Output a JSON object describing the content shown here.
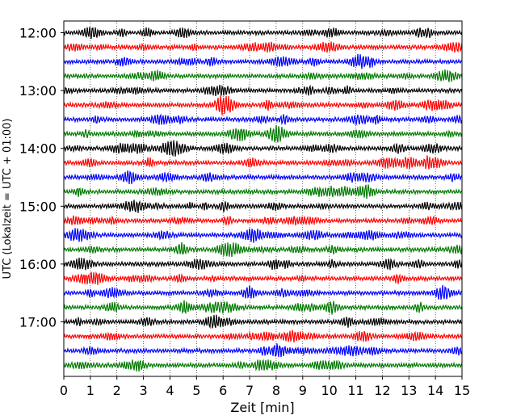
{
  "chart_data": {
    "type": "line",
    "title": "",
    "xlabel": "Zeit  [min]",
    "ylabel": "UTC (Lokalzeit = UTC + 01:00)",
    "xlim": [
      0,
      15
    ],
    "x_ticks": [
      "0",
      "1",
      "2",
      "3",
      "4",
      "5",
      "6",
      "7",
      "8",
      "9",
      "10",
      "11",
      "12",
      "13",
      "14",
      "15"
    ],
    "y_ticks": [
      "12:00",
      "13:00",
      "14:00",
      "15:00",
      "16:00",
      "17:00"
    ],
    "grid": {
      "vertical_dotted": true
    },
    "trace_interval_min": 15,
    "trace_colors": [
      "#000000",
      "#ff0000",
      "#0000ff",
      "#007a00"
    ],
    "traces": [
      {
        "start": "12:00"
      },
      {
        "start": "12:15"
      },
      {
        "start": "12:30"
      },
      {
        "start": "12:45"
      },
      {
        "start": "13:00"
      },
      {
        "start": "13:15"
      },
      {
        "start": "13:30"
      },
      {
        "start": "13:45"
      },
      {
        "start": "14:00"
      },
      {
        "start": "14:15"
      },
      {
        "start": "14:30"
      },
      {
        "start": "14:45"
      },
      {
        "start": "15:00"
      },
      {
        "start": "15:15"
      },
      {
        "start": "15:30"
      },
      {
        "start": "15:45"
      },
      {
        "start": "16:00"
      },
      {
        "start": "16:15"
      },
      {
        "start": "16:30"
      },
      {
        "start": "16:45"
      },
      {
        "start": "17:00"
      },
      {
        "start": "17:15"
      },
      {
        "start": "17:30"
      },
      {
        "start": "17:45"
      }
    ]
  }
}
